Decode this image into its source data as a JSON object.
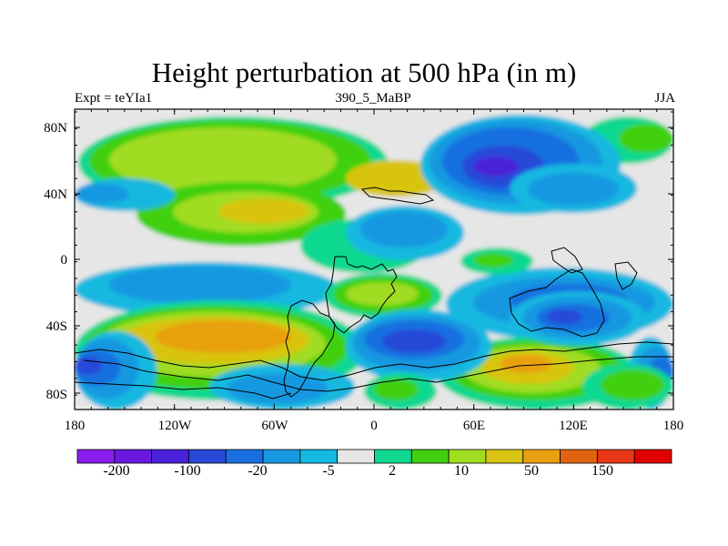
{
  "title": "Height perturbation at 500 hPa (in m)",
  "subtitle_left": "Expt = teYIa1",
  "subtitle_center": "390_5_MaBP",
  "subtitle_right": "JJA",
  "lat_ticks": [
    "80N",
    "40N",
    "0",
    "40S",
    "80S"
  ],
  "lon_ticks": [
    "180",
    "120W",
    "60W",
    "0",
    "60E",
    "120E",
    "180"
  ],
  "colorbar": {
    "colors": [
      "#8a1cf0",
      "#6a18e0",
      "#4a20d8",
      "#2848d8",
      "#1870e0",
      "#1898e0",
      "#14b8e0",
      "#e6e6e6",
      "#10d890",
      "#40d010",
      "#a0dc20",
      "#d8c410",
      "#e8a010",
      "#e06410",
      "#e83818",
      "#e00000"
    ],
    "labels": [
      "-200",
      "-100",
      "-20",
      "-5",
      "2",
      "10",
      "50",
      "150"
    ]
  },
  "colors": {
    "neutral": "#e6e6e6",
    "pos1": "#10d890",
    "pos2": "#40d010",
    "pos3": "#a0dc20",
    "pos4": "#d8c410",
    "pos5": "#e8a010",
    "neg1": "#14b8e0",
    "neg2": "#1898e0",
    "neg3": "#1870e0",
    "neg4": "#2848d8",
    "neg5": "#4a20d8"
  }
}
